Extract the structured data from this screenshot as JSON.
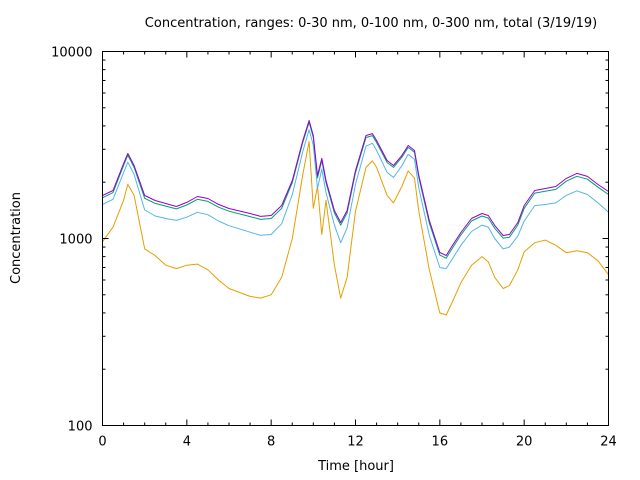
{
  "chart_data": {
    "type": "line",
    "title": "Concentration, ranges: 0-30 nm, 0-100 nm, 0-300 nm, total (3/19/19)",
    "xlabel": "Time [hour]",
    "ylabel": "Concentration",
    "xlim": [
      0,
      24
    ],
    "ylim": [
      100,
      10000
    ],
    "yscale": "log",
    "xticks": [
      0,
      4,
      8,
      12,
      16,
      20,
      24
    ],
    "xtick_labels": [
      "0",
      "4",
      "8",
      "12",
      "16",
      "20",
      "24"
    ],
    "yticks": [
      100,
      1000,
      10000
    ],
    "ytick_labels": [
      "100",
      "1000",
      "10000"
    ],
    "grid": false,
    "legend": "none",
    "x": [
      0,
      0.5,
      1.0,
      1.2,
      1.5,
      2.0,
      2.5,
      3,
      3.5,
      4,
      4.5,
      5,
      5.5,
      6,
      7,
      7.5,
      8,
      8.5,
      9,
      9.5,
      9.8,
      10.0,
      10.2,
      10.4,
      10.6,
      11,
      11.3,
      11.6,
      12,
      12.5,
      12.8,
      13,
      13.5,
      13.8,
      14.2,
      14.5,
      14.8,
      15,
      15.5,
      16,
      16.3,
      16.6,
      17,
      17.5,
      18,
      18.3,
      18.6,
      19,
      19.3,
      19.7,
      20,
      20.5,
      21,
      21.5,
      22,
      22.5,
      23,
      23.5,
      24
    ],
    "series": [
      {
        "name": "total",
        "color": "#9400d3",
        "values": [
          1698,
          1805,
          2518,
          2850,
          2456,
          1698,
          1597,
          1539,
          1483,
          1559,
          1678,
          1637,
          1521,
          1446,
          1361,
          1312,
          1327,
          1501,
          2043,
          3343,
          4276,
          3556,
          2174,
          2680,
          2043,
          1411,
          1218,
          1411,
          2310,
          3556,
          3639,
          3343,
          2614,
          2456,
          2782,
          3143,
          2956,
          2174,
          1249,
          842,
          811,
          918,
          1077,
          1280,
          1361,
          1327,
          1175,
          1038,
          1050,
          1218,
          1501,
          1805,
          1850,
          1897,
          2095,
          2228,
          2148,
          1944,
          1783
        ]
      },
      {
        "name": "0-300 nm",
        "color": "#009e73",
        "values": [
          1650,
          1760,
          2460,
          2790,
          2400,
          1640,
          1540,
          1490,
          1440,
          1510,
          1620,
          1580,
          1470,
          1400,
          1310,
          1265,
          1280,
          1450,
          1990,
          3270,
          4180,
          3470,
          2110,
          2610,
          1990,
          1370,
          1180,
          1370,
          2250,
          3470,
          3550,
          3260,
          2550,
          2400,
          2720,
          3070,
          2890,
          2120,
          1210,
          815,
          785,
          890,
          1045,
          1240,
          1320,
          1285,
          1135,
          1005,
          1015,
          1180,
          1450,
          1750,
          1790,
          1830,
          2025,
          2150,
          2075,
          1880,
          1720
        ]
      },
      {
        "name": "0-100 nm",
        "color": "#56b4e9",
        "values": [
          1520,
          1620,
          2250,
          2560,
          2200,
          1420,
          1320,
          1280,
          1250,
          1300,
          1380,
          1340,
          1240,
          1170,
          1080,
          1040,
          1050,
          1200,
          1720,
          2920,
          3820,
          3150,
          1850,
          2350,
          1760,
          1180,
          950,
          1140,
          1950,
          3120,
          3230,
          2960,
          2260,
          2120,
          2450,
          2820,
          2650,
          1860,
          1040,
          700,
          690,
          780,
          920,
          1090,
          1180,
          1150,
          1000,
          880,
          900,
          1030,
          1240,
          1500,
          1520,
          1550,
          1700,
          1800,
          1720,
          1550,
          1380
        ]
      },
      {
        "name": "0-30 nm",
        "color": "#e69f00",
        "values": [
          960,
          1150,
          1600,
          1950,
          1700,
          880,
          810,
          720,
          690,
          720,
          730,
          680,
          600,
          540,
          490,
          480,
          500,
          620,
          1000,
          2200,
          3300,
          1450,
          1900,
          1050,
          1600,
          720,
          480,
          620,
          1400,
          2400,
          2600,
          2400,
          1700,
          1550,
          1900,
          2300,
          2100,
          1400,
          680,
          400,
          390,
          460,
          580,
          720,
          800,
          750,
          620,
          540,
          560,
          680,
          850,
          950,
          980,
          920,
          840,
          860,
          840,
          760,
          640
        ]
      }
    ]
  }
}
